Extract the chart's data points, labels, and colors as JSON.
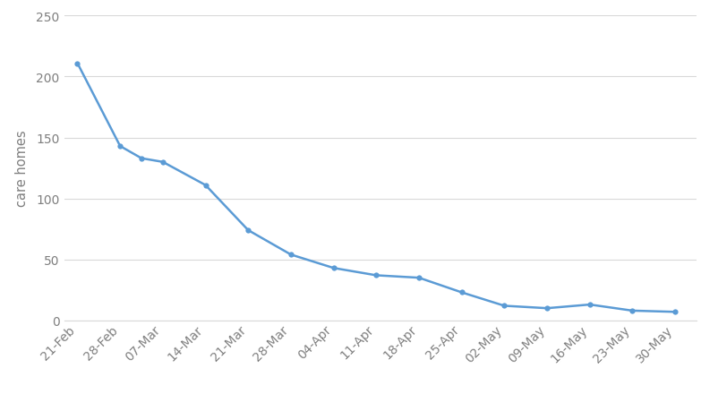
{
  "x_labels": [
    "21-Feb",
    "28-Feb",
    "07-Mar",
    "14-Mar",
    "21-Mar",
    "28-Mar",
    "04-Apr",
    "11-Apr",
    "18-Apr",
    "25-Apr",
    "02-May",
    "09-May",
    "16-May",
    "23-May",
    "30-May"
  ],
  "x_positions": [
    0,
    1,
    1.5,
    2,
    3,
    4,
    5,
    6,
    7,
    8,
    9,
    10,
    11,
    12,
    13,
    14
  ],
  "y_values": [
    211,
    143,
    133,
    130,
    111,
    74,
    54,
    43,
    37,
    35,
    23,
    12,
    10,
    13,
    8,
    7
  ],
  "tick_positions": [
    0,
    1,
    2,
    3,
    4,
    5,
    6,
    7,
    8,
    9,
    10,
    11,
    12,
    13,
    14
  ],
  "line_color": "#5B9BD5",
  "marker_color": "#5B9BD5",
  "ylabel": "care homes",
  "ylim": [
    0,
    250
  ],
  "yticks": [
    0,
    50,
    100,
    150,
    200,
    250
  ],
  "xlim": [
    -0.3,
    14.5
  ],
  "background_color": "#ffffff",
  "grid_color": "#d9d9d9",
  "tick_label_color": "#7f7f7f",
  "ylabel_color": "#7f7f7f",
  "spine_color": "#d9d9d9"
}
